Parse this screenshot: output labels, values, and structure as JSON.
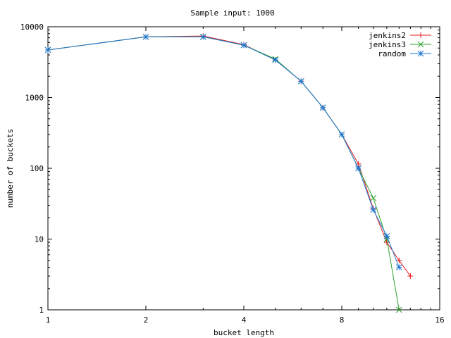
{
  "chart_data": {
    "type": "line",
    "title": "Sample input: 1000",
    "xlabel": "bucket length",
    "ylabel": "number of buckets",
    "x_scale": "log2",
    "y_scale": "log10",
    "xlim": [
      1,
      16
    ],
    "ylim": [
      1,
      10000
    ],
    "x_ticks": [
      {
        "value": 1,
        "label": "1"
      },
      {
        "value": 2,
        "label": "2"
      },
      {
        "value": 4,
        "label": "4"
      },
      {
        "value": 8,
        "label": "8"
      },
      {
        "value": 16,
        "label": "16"
      }
    ],
    "y_ticks": [
      {
        "value": 1,
        "label": "1"
      },
      {
        "value": 10,
        "label": "10"
      },
      {
        "value": 100,
        "label": "100"
      },
      {
        "value": 1000,
        "label": "1000"
      },
      {
        "value": 10000,
        "label": "10000"
      }
    ],
    "legend_position": "top-right",
    "grid": false,
    "series": [
      {
        "name": "jenkins2",
        "color": "#e41a1c",
        "marker": "plus",
        "x": [
          1,
          2,
          3,
          4,
          5,
          6,
          7,
          8,
          9,
          10,
          11,
          12,
          13
        ],
        "y": [
          4700,
          7200,
          7400,
          5600,
          3400,
          1700,
          720,
          300,
          115,
          27,
          9,
          5,
          3
        ]
      },
      {
        "name": "jenkins3",
        "color": "#2ca02c",
        "marker": "cross",
        "x": [
          1,
          2,
          3,
          4,
          5,
          6,
          7,
          8,
          9,
          10,
          11,
          12
        ],
        "y": [
          4700,
          7200,
          7200,
          5500,
          3500,
          1700,
          720,
          300,
          100,
          38,
          10,
          1
        ]
      },
      {
        "name": "random",
        "color": "#1f77d4",
        "marker": "star",
        "x": [
          1,
          2,
          3,
          4,
          5,
          6,
          7,
          8,
          9,
          10,
          11,
          12
        ],
        "y": [
          4700,
          7200,
          7200,
          5500,
          3400,
          1700,
          720,
          300,
          100,
          26,
          11,
          4
        ]
      }
    ]
  }
}
